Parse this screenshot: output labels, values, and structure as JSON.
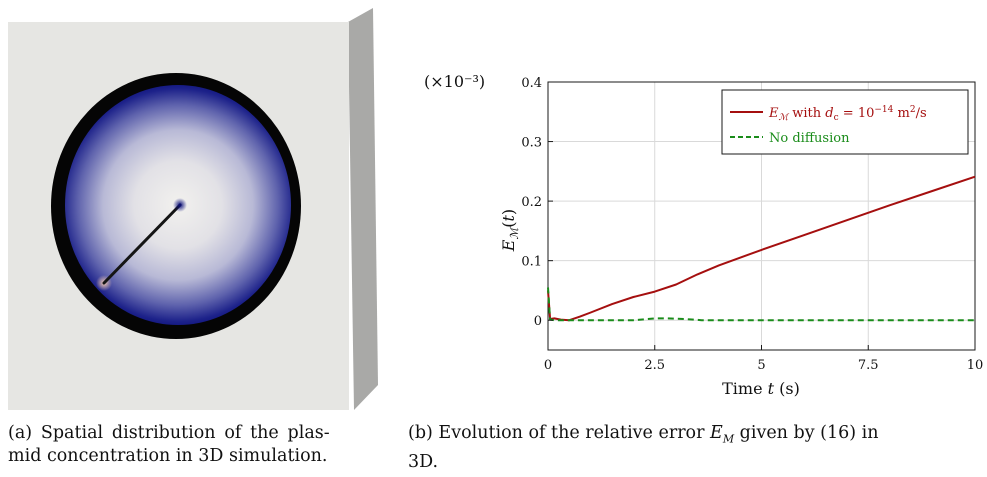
{
  "figure_a": {
    "colors": {
      "box_face": "#e6e6e3",
      "box_side": "#a9a9a7",
      "ring": "#050505",
      "plasma_outer": "#0b0f7a",
      "plasma_center": "#ecebe7",
      "needle": "#151515",
      "needle_tip": "#f3c9b0"
    }
  },
  "chart_data": {
    "type": "line",
    "title": "",
    "xlabel": "Time t (s)",
    "ylabel": "E_M(t)",
    "y_multiplier": "(×10⁻³)",
    "xlim": [
      0,
      10
    ],
    "ylim": [
      -0.05,
      0.4
    ],
    "x_ticks": [
      0,
      2.5,
      5,
      7.5,
      10
    ],
    "x_tick_labels": [
      "0",
      "2.5",
      "5",
      "7.5",
      "10"
    ],
    "y_ticks": [
      0,
      0.1,
      0.2,
      0.3,
      0.4
    ],
    "y_tick_labels": [
      "0",
      "0.1",
      "0.2",
      "0.3",
      "0.4"
    ],
    "grid": true,
    "legend_position": "top-right",
    "series": [
      {
        "name": "E_M with d_c = 10⁻¹⁴ m²/s",
        "color": "#a50f0f",
        "style": "solid",
        "x": [
          0,
          0.05,
          0.15,
          0.3,
          0.5,
          0.75,
          1.0,
          1.5,
          2.0,
          2.5,
          3.0,
          3.5,
          4.0,
          5.0,
          6.0,
          7.0,
          8.0,
          9.0,
          10.0
        ],
        "y": [
          0.05,
          0.002,
          0.003,
          0.001,
          0.0,
          0.006,
          0.013,
          0.027,
          0.039,
          0.048,
          0.06,
          0.077,
          0.092,
          0.118,
          0.143,
          0.168,
          0.193,
          0.217,
          0.241
        ]
      },
      {
        "name": "No diffusion",
        "color": "#1a8c1a",
        "style": "dashed",
        "x": [
          0,
          0.05,
          0.15,
          0.5,
          1.0,
          2.0,
          2.5,
          2.8,
          3.2,
          3.6,
          4.0,
          5.0,
          6.0,
          7.0,
          8.0,
          9.0,
          10.0
        ],
        "y": [
          0.055,
          0.001,
          0.0,
          0.0,
          0.0,
          0.0,
          0.003,
          0.003,
          0.002,
          0.0,
          0.0,
          0.0,
          0.0,
          0.0,
          0.0,
          0.0,
          0.0
        ]
      }
    ]
  },
  "captions": {
    "a_line1": "(a) Spatial distribution of the plas-",
    "a_line2": "mid concentration in 3D simulation.",
    "b_line1_part1": "(b) Evolution of the relative error ",
    "b_symbol": "E",
    "b_sub": "M",
    "b_line1_part2": " given by (16) in",
    "b_line2": "3D."
  }
}
